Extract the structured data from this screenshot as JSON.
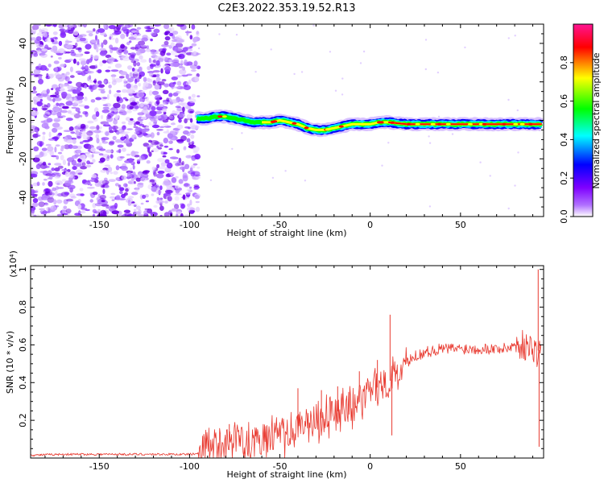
{
  "figure": {
    "title": "C2E3.2022.353.19.52.R13"
  },
  "chart_data": [
    {
      "type": "heatmap",
      "xlabel": "Height of straight line (km)",
      "ylabel": "Frequency (Hz)",
      "xlim": [
        -188,
        96
      ],
      "ylim": [
        -50,
        50
      ],
      "x_ticks": [
        -150,
        -100,
        -50,
        0,
        50
      ],
      "y_ticks": [
        -40,
        -20,
        0,
        20,
        40
      ],
      "noise_region_x": [
        -188,
        -95
      ],
      "signal_track": {
        "x": [
          -96,
          -90,
          -85,
          -80,
          -75,
          -70,
          -65,
          -60,
          -55,
          -50,
          -45,
          -40,
          -35,
          -30,
          -25,
          -20,
          -15,
          -10,
          -5,
          0,
          5,
          10,
          20,
          30,
          40,
          50,
          60,
          70,
          80,
          90,
          95
        ],
        "frequency_hz": [
          1,
          1,
          2,
          2,
          1,
          0,
          -1,
          -1,
          -1,
          0,
          -1,
          -2,
          -4,
          -5,
          -5,
          -4,
          -3,
          -2,
          -2,
          -2,
          -1,
          -1,
          -2,
          -2,
          -2,
          -2,
          -2,
          -2,
          -2,
          -2,
          -2
        ]
      },
      "colorbar": {
        "label": "Normalized spectral amplitude",
        "ticks": [
          0.0,
          0.2,
          0.4,
          0.6,
          0.8
        ],
        "range": [
          0,
          1
        ],
        "colormap": [
          "#ffffff",
          "#7f00ff",
          "#0000ff",
          "#00ffff",
          "#00ff00",
          "#ffff00",
          "#ff0000",
          "#ff0080"
        ]
      },
      "grid": false
    },
    {
      "type": "line",
      "xlabel": "Height of straight line (km)",
      "ylabel": "SNR (10 * v/v)",
      "scale_label": "(x10⁴)",
      "xlim": [
        -188,
        96
      ],
      "ylim": [
        0,
        1.02
      ],
      "x_ticks": [
        -150,
        -100,
        -50,
        0,
        50
      ],
      "y_ticks": [
        0.2,
        0.4,
        0.6,
        0.8,
        1.0
      ],
      "color": "#e8392f",
      "series": [
        {
          "x": [
            -188,
            -170,
            -150,
            -130,
            -110,
            -100,
            -95,
            -90,
            -85,
            -80,
            -75,
            -70,
            -65,
            -60,
            -55,
            -50,
            -45,
            -40,
            -35,
            -30,
            -25,
            -20,
            -15,
            -10,
            -5,
            0,
            5,
            10,
            12,
            15,
            20,
            25,
            30,
            35,
            40,
            45,
            50,
            55,
            60,
            65,
            70,
            75,
            80,
            85,
            88,
            90,
            92,
            93,
            95
          ],
          "y": [
            0.015,
            0.02,
            0.02,
            0.02,
            0.02,
            0.02,
            0.025,
            0.04,
            0.06,
            0.08,
            0.09,
            0.1,
            0.1,
            0.1,
            0.11,
            0.12,
            0.13,
            0.15,
            0.18,
            0.2,
            0.22,
            0.24,
            0.26,
            0.28,
            0.3,
            0.35,
            0.38,
            0.4,
            0.42,
            0.45,
            0.5,
            0.54,
            0.56,
            0.57,
            0.58,
            0.58,
            0.58,
            0.58,
            0.58,
            0.58,
            0.58,
            0.58,
            0.6,
            0.6,
            0.58,
            0.6,
            0.55,
            0.57,
            0.58
          ]
        }
      ],
      "spikes": [
        {
          "x": 11,
          "y": 0.76
        },
        {
          "x": 12,
          "y": 0.12
        },
        {
          "x": 4,
          "y": 0.52
        },
        {
          "x": -6,
          "y": 0.46
        },
        {
          "x": -18,
          "y": 0.38
        },
        {
          "x": -27,
          "y": 0.36
        },
        {
          "x": -40,
          "y": 0.37
        },
        {
          "x": -78,
          "y": 0.18
        },
        {
          "x": 93,
          "y": 1.0
        },
        {
          "x": 93.5,
          "y": 0.06
        }
      ],
      "grid": false
    }
  ]
}
